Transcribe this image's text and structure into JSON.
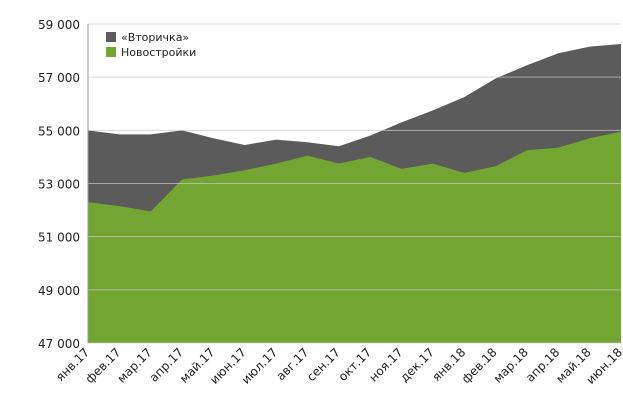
{
  "chart_data": {
    "type": "area",
    "categories": [
      "янв.17",
      "фев.17",
      "мар.17",
      "апр.17",
      "май.17",
      "июн.17",
      "июл.17",
      "авг.17",
      "сен.17",
      "окт.17",
      "ноя.17",
      "дек.17",
      "янв.18",
      "фев.18",
      "мар.18",
      "апр.18",
      "май.18",
      "июн.18"
    ],
    "series": [
      {
        "name": "«Вторичка»",
        "color": "#5b5b5b",
        "values": [
          55000,
          54850,
          54850,
          55000,
          54700,
          54450,
          54650,
          54550,
          54400,
          54800,
          55300,
          55750,
          56250,
          56950,
          57450,
          57900,
          58150,
          58250
        ]
      },
      {
        "name": "Новостройки",
        "color": "#73a532",
        "values": [
          52300,
          52150,
          51950,
          53150,
          53300,
          53500,
          53750,
          54050,
          53750,
          54000,
          53550,
          53750,
          53400,
          53650,
          54250,
          54350,
          54700,
          54950
        ]
      }
    ],
    "ylim": [
      47000,
      59000
    ],
    "yticks": [
      {
        "value": 47000,
        "label": "47 000"
      },
      {
        "value": 49000,
        "label": "49 000"
      },
      {
        "value": 51000,
        "label": "51 000"
      },
      {
        "value": 53000,
        "label": "53 000"
      },
      {
        "value": 55000,
        "label": "55 000"
      },
      {
        "value": 57000,
        "label": "57 000"
      },
      {
        "value": 59000,
        "label": "59 000"
      }
    ],
    "grid": true,
    "legend": "top-left"
  }
}
